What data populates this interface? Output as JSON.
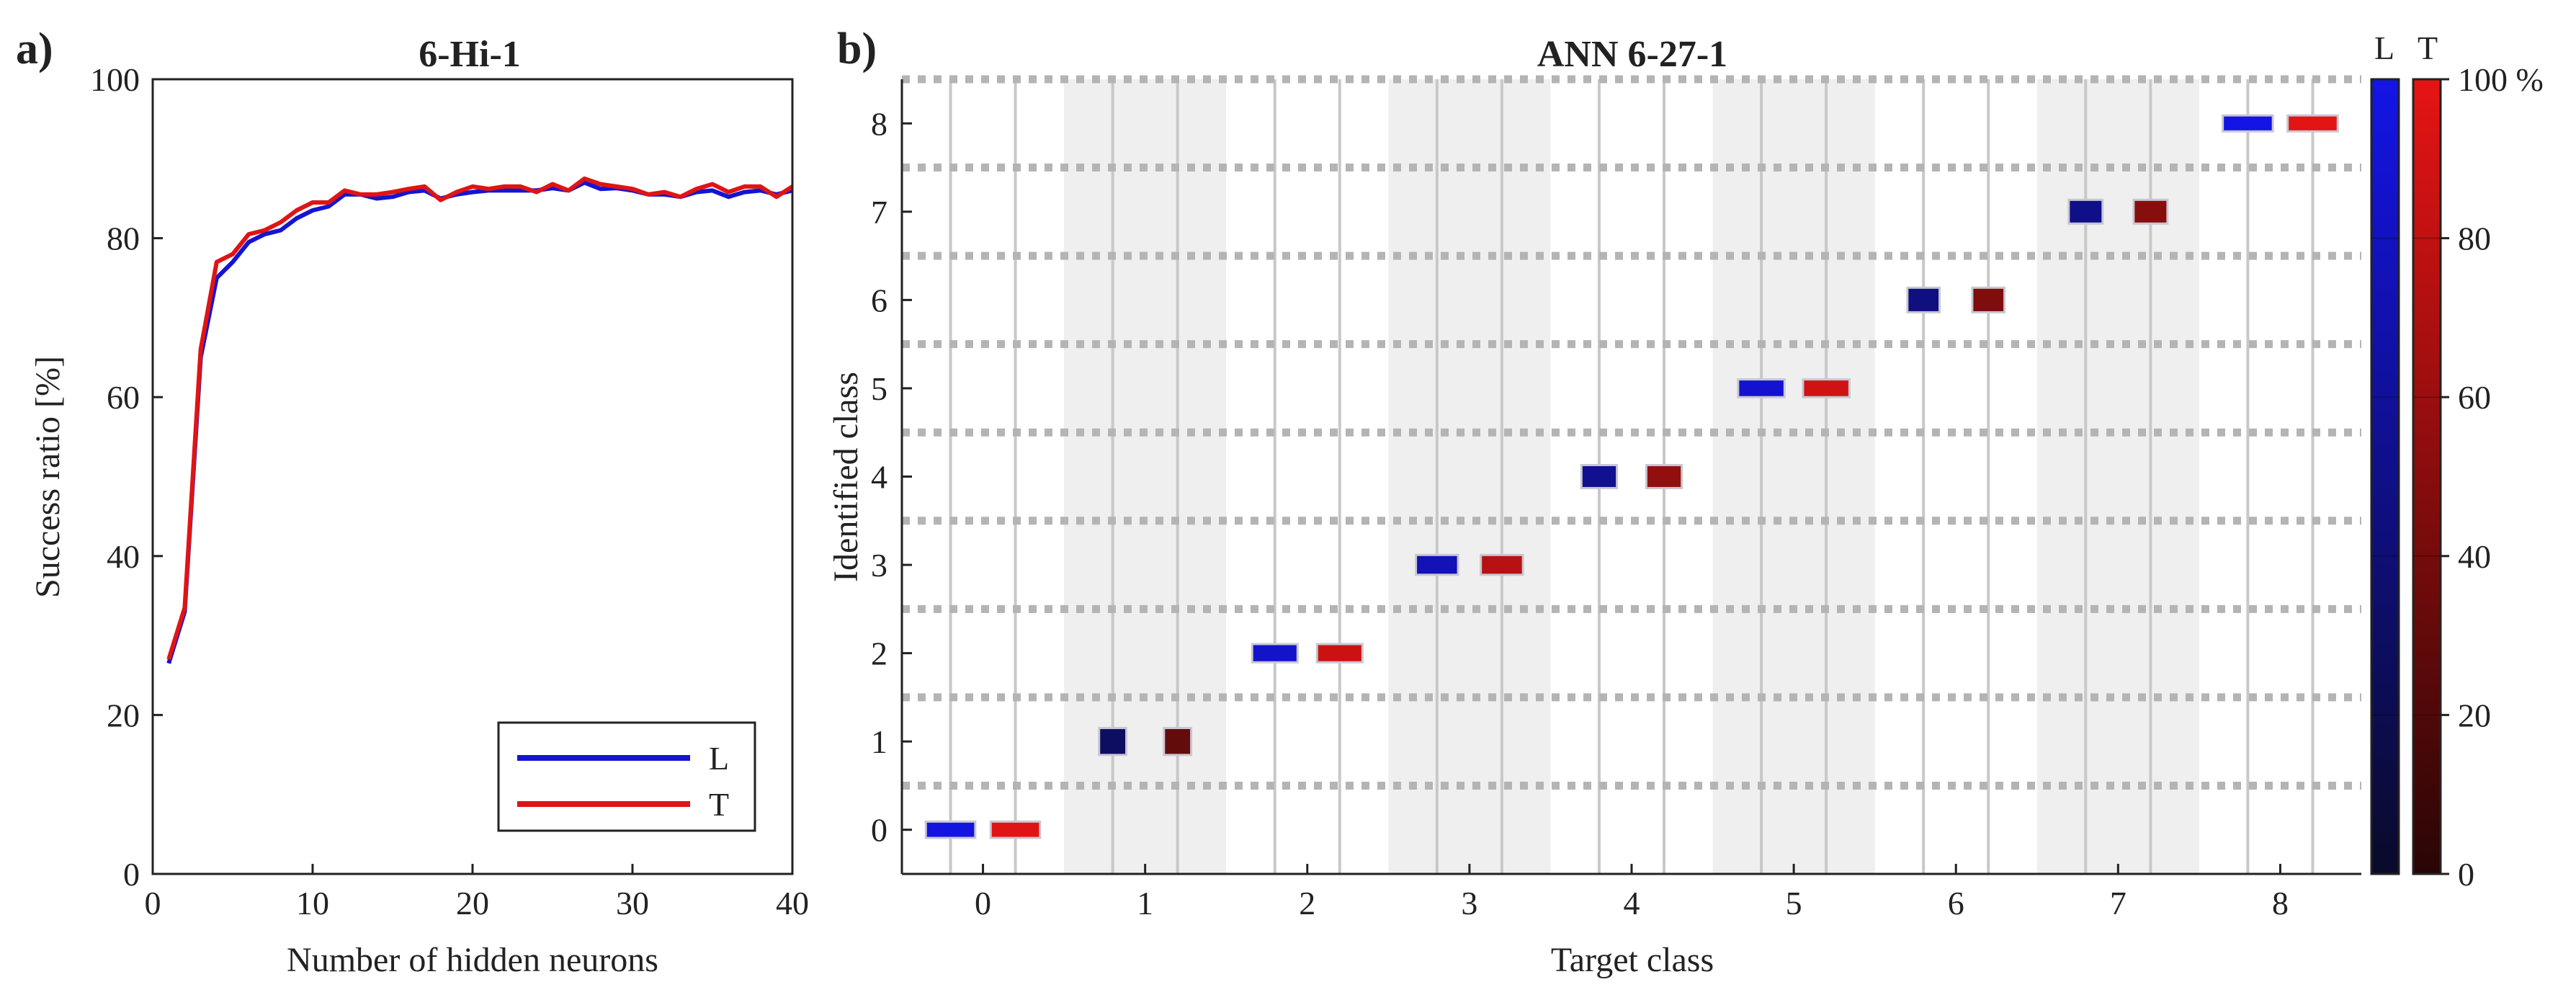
{
  "panels": {
    "a": {
      "label": "a)"
    },
    "b": {
      "label": "b)"
    }
  },
  "colors": {
    "L": "#1414d2",
    "T": "#e01414",
    "shade": "#efefef",
    "grid": "#b4b4b4",
    "vline": "#c8c8c8"
  },
  "chart_data": [
    {
      "type": "line",
      "title": "6-Hi-1",
      "xlabel": "Number of hidden neurons",
      "ylabel": "Success ratio [%]",
      "xlim": [
        0,
        40
      ],
      "ylim": [
        0,
        100
      ],
      "xticks": [
        0,
        10,
        20,
        30,
        40
      ],
      "yticks": [
        0,
        20,
        40,
        60,
        80,
        100
      ],
      "x": [
        1,
        2,
        3,
        4,
        5,
        6,
        7,
        8,
        9,
        10,
        11,
        12,
        13,
        14,
        15,
        16,
        17,
        18,
        19,
        20,
        21,
        22,
        23,
        24,
        25,
        26,
        27,
        28,
        29,
        30,
        31,
        32,
        33,
        34,
        35,
        36,
        37,
        38,
        39,
        40
      ],
      "legend_position": "bottom-right",
      "series": [
        {
          "name": "L",
          "values": [
            26.5,
            33,
            65,
            75,
            77,
            79.5,
            80.5,
            81,
            82.5,
            83.5,
            84,
            85.5,
            85.5,
            85,
            85.2,
            85.8,
            86,
            85,
            85.5,
            85.8,
            86,
            86,
            86,
            86,
            86.3,
            86,
            87,
            86.2,
            86.3,
            86,
            85.5,
            85.5,
            85.2,
            85.8,
            86,
            85.2,
            85.8,
            86,
            85.5,
            86
          ]
        },
        {
          "name": "T",
          "values": [
            27,
            33.5,
            66,
            77,
            78,
            80.5,
            81,
            82,
            83.5,
            84.5,
            84.5,
            86,
            85.5,
            85.5,
            85.8,
            86.2,
            86.5,
            84.8,
            85.8,
            86.5,
            86.2,
            86.5,
            86.5,
            85.8,
            86.8,
            86,
            87.5,
            86.8,
            86.5,
            86.2,
            85.5,
            85.8,
            85.2,
            86.2,
            86.8,
            85.8,
            86.5,
            86.5,
            85.2,
            86.5
          ]
        }
      ]
    },
    {
      "type": "heatmap",
      "title": "ANN 6-27-1",
      "xlabel": "Target class",
      "ylabel": "Identified class",
      "xlim": [
        -0.5,
        8.5
      ],
      "ylim": [
        -0.5,
        8.5
      ],
      "xticks": [
        0,
        1,
        2,
        3,
        4,
        5,
        6,
        7,
        8
      ],
      "yticks": [
        0,
        1,
        2,
        3,
        4,
        5,
        6,
        7,
        8
      ],
      "colorbar": {
        "labels": [
          "L",
          "T"
        ],
        "ticks": [
          "0",
          "20",
          "40",
          "60",
          "80",
          "100 %"
        ],
        "range": [
          0,
          100
        ]
      },
      "series": [
        {
          "name": "L",
          "cells": [
            {
              "target": 0,
              "identified": 0,
              "value": 97
            },
            {
              "target": 1,
              "identified": 1,
              "value": 30
            },
            {
              "target": 2,
              "identified": 2,
              "value": 85
            },
            {
              "target": 3,
              "identified": 3,
              "value": 75
            },
            {
              "target": 4,
              "identified": 4,
              "value": 55
            },
            {
              "target": 5,
              "identified": 5,
              "value": 88
            },
            {
              "target": 6,
              "identified": 6,
              "value": 45
            },
            {
              "target": 7,
              "identified": 7,
              "value": 50
            },
            {
              "target": 8,
              "identified": 8,
              "value": 99
            }
          ]
        },
        {
          "name": "T",
          "cells": [
            {
              "target": 0,
              "identified": 0,
              "value": 97
            },
            {
              "target": 1,
              "identified": 1,
              "value": 30
            },
            {
              "target": 2,
              "identified": 2,
              "value": 85
            },
            {
              "target": 3,
              "identified": 3,
              "value": 75
            },
            {
              "target": 4,
              "identified": 4,
              "value": 55
            },
            {
              "target": 5,
              "identified": 5,
              "value": 88
            },
            {
              "target": 6,
              "identified": 6,
              "value": 45
            },
            {
              "target": 7,
              "identified": 7,
              "value": 50
            },
            {
              "target": 8,
              "identified": 8,
              "value": 99
            }
          ]
        }
      ]
    }
  ]
}
